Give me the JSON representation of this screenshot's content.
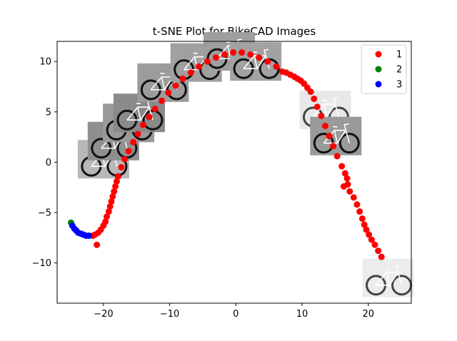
{
  "chart_data": {
    "type": "scatter",
    "title": "t-SNE Plot for BikeCAD Images",
    "xlabel": "",
    "ylabel": "",
    "xlim": [
      -27,
      26.5
    ],
    "ylim": [
      -14,
      12
    ],
    "x_ticks": [
      -20,
      -10,
      0,
      10,
      20
    ],
    "y_ticks": [
      -10,
      -5,
      0,
      5,
      10
    ],
    "grid": false,
    "legend_position": "top-right",
    "series": [
      {
        "name": "1",
        "color": "#ff0000",
        "points": [
          [
            -21,
            -8.2
          ],
          [
            -21.6,
            -7.3
          ],
          [
            -21.3,
            -7.2
          ],
          [
            -20.8,
            -7.0
          ],
          [
            -20.4,
            -6.7
          ],
          [
            -20.0,
            -6.3
          ],
          [
            -19.7,
            -5.9
          ],
          [
            -19.5,
            -5.4
          ],
          [
            -19.2,
            -4.9
          ],
          [
            -19.0,
            -4.4
          ],
          [
            -18.8,
            -3.9
          ],
          [
            -18.6,
            -3.4
          ],
          [
            -18.4,
            -2.9
          ],
          [
            -18.2,
            -2.4
          ],
          [
            -18.0,
            -1.9
          ],
          [
            -17.8,
            -1.4
          ],
          [
            -17.3,
            -0.5
          ],
          [
            -16.8,
            0.3
          ],
          [
            -16.2,
            1.1
          ],
          [
            -15.5,
            2.0
          ],
          [
            -14.8,
            2.8
          ],
          [
            -14.0,
            3.7
          ],
          [
            -13.1,
            4.5
          ],
          [
            -12.2,
            5.3
          ],
          [
            -11.2,
            6.1
          ],
          [
            -10.2,
            6.9
          ],
          [
            -9.1,
            7.6
          ],
          [
            -8.0,
            8.3
          ],
          [
            -6.8,
            8.9
          ],
          [
            -5.6,
            9.5
          ],
          [
            -4.3,
            10.0
          ],
          [
            -3.0,
            10.4
          ],
          [
            -1.7,
            10.7
          ],
          [
            -0.4,
            10.9
          ],
          [
            0.9,
            10.9
          ],
          [
            2.2,
            10.7
          ],
          [
            3.5,
            10.4
          ],
          [
            4.8,
            10.0
          ],
          [
            6.1,
            9.5
          ],
          [
            7.0,
            9.0
          ],
          [
            7.6,
            8.9
          ],
          [
            8.2,
            8.7
          ],
          [
            8.8,
            8.5
          ],
          [
            9.3,
            8.3
          ],
          [
            9.8,
            8.1
          ],
          [
            10.3,
            7.8
          ],
          [
            10.8,
            7.4
          ],
          [
            11.3,
            7.0
          ],
          [
            11.8,
            6.3
          ],
          [
            12.3,
            5.5
          ],
          [
            12.9,
            4.6
          ],
          [
            13.5,
            3.6
          ],
          [
            14.1,
            2.6
          ],
          [
            14.7,
            1.6
          ],
          [
            15.3,
            0.6
          ],
          [
            16.0,
            -0.4
          ],
          [
            16.5,
            -1.1
          ],
          [
            16.8,
            -1.6
          ],
          [
            16.9,
            -2.2
          ],
          [
            17.2,
            -2.9
          ],
          [
            17.8,
            -3.5
          ],
          [
            18.3,
            -4.2
          ],
          [
            18.7,
            -4.9
          ],
          [
            19.1,
            -5.6
          ],
          [
            19.4,
            -6.2
          ],
          [
            19.7,
            -6.7
          ],
          [
            20.1,
            -7.2
          ],
          [
            20.5,
            -7.7
          ],
          [
            21.0,
            -8.2
          ],
          [
            21.5,
            -8.8
          ],
          [
            22.0,
            -9.4
          ],
          [
            16.3,
            -2.4
          ]
        ]
      },
      {
        "name": "2",
        "color": "#008000",
        "points": [
          [
            -24.9,
            -6.0
          ]
        ]
      },
      {
        "name": "3",
        "color": "#0000ff",
        "points": [
          [
            -24.7,
            -6.3
          ],
          [
            -24.4,
            -6.6
          ],
          [
            -24.1,
            -6.8
          ],
          [
            -23.8,
            -7.0
          ],
          [
            -23.4,
            -7.1
          ],
          [
            -23.0,
            -7.2
          ],
          [
            -22.6,
            -7.3
          ],
          [
            -22.2,
            -7.3
          ]
        ]
      }
    ],
    "thumbnails": [
      {
        "x": -20,
        "y": 0.3,
        "tone": "#b8b8b8"
      },
      {
        "x": -18.5,
        "y": 2.1,
        "tone": "#8f8f8f"
      },
      {
        "x": -16.2,
        "y": 3.9,
        "tone": "#9a9a9a"
      },
      {
        "x": -14.6,
        "y": 4.9,
        "tone": "#8a8a8a"
      },
      {
        "x": -11.0,
        "y": 7.9,
        "tone": "#9c9c9c"
      },
      {
        "x": -6.0,
        "y": 9.9,
        "tone": "#a0a0a0"
      },
      {
        "x": -1.0,
        "y": 11.0,
        "tone": "#9e9e9e"
      },
      {
        "x": 3.0,
        "y": 10.0,
        "tone": "#a2a2a2"
      },
      {
        "x": 13.5,
        "y": 5.2,
        "tone": "#e8e8e8"
      },
      {
        "x": 15.1,
        "y": 2.6,
        "tone": "#9a9a9a"
      },
      {
        "x": 23.0,
        "y": -11.5,
        "tone": "#ececec"
      }
    ]
  }
}
